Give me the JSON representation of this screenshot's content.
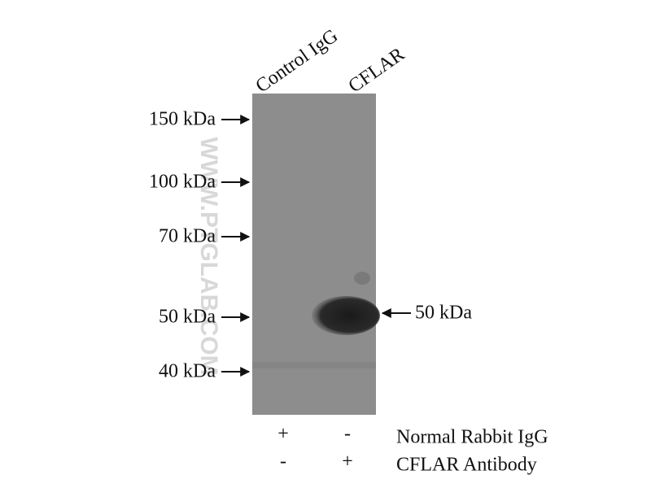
{
  "lanes": [
    "Control IgG",
    "CFLAR"
  ],
  "markers": [
    "150 kDa",
    "100 kDa",
    "70 kDa",
    "50 kDa",
    "40 kDa"
  ],
  "band_label": "50 kDa",
  "watermark": "WWW.PTGLAB.COM",
  "conditions": [
    {
      "label": "Normal Rabbit IgG",
      "signs": [
        "+",
        "-"
      ]
    },
    {
      "label": "CFLAR Antibody",
      "signs": [
        "-",
        "+"
      ]
    }
  ]
}
